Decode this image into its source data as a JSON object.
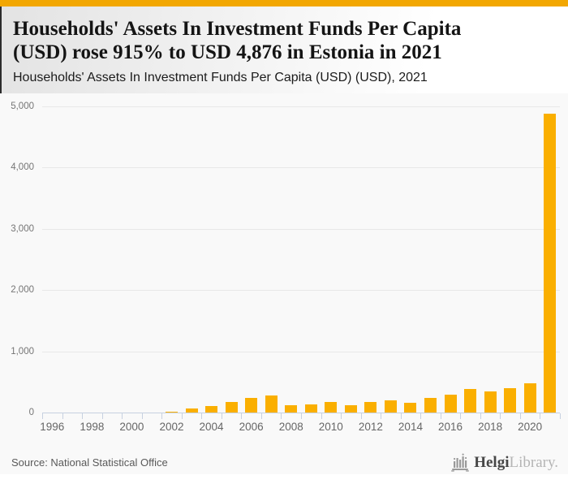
{
  "colors": {
    "accent_banner": "#F2A702",
    "bar": "#FAAF00",
    "axis": "#C7D1E0",
    "gridline": "#E8E8E8",
    "plot_background": "#F9F9F9"
  },
  "header": {
    "title_lines": [
      "Households' Assets In Investment Funds Per Capita",
      "(USD) rose 915% to USD 4,876 in Estonia in 2021"
    ],
    "subtitle": "Households' Assets In Investment Funds Per Capita (USD) (USD), 2021"
  },
  "chart_data": {
    "type": "bar",
    "title": "Households' Assets In Investment Funds Per Capita (USD) rose 915% to USD 4,876 in Estonia in 2021",
    "subtitle": "Households' Assets In Investment Funds Per Capita (USD) (USD), 2021",
    "unit": "USD",
    "categories": [
      1996,
      1997,
      1998,
      1999,
      2000,
      2001,
      2002,
      2003,
      2004,
      2005,
      2006,
      2007,
      2008,
      2009,
      2010,
      2011,
      2012,
      2013,
      2014,
      2015,
      2016,
      2017,
      2018,
      2019,
      2020,
      2021
    ],
    "values": [
      0,
      0,
      0,
      0,
      0,
      0,
      18,
      67,
      100,
      178,
      236,
      280,
      118,
      130,
      170,
      122,
      175,
      200,
      165,
      245,
      285,
      380,
      350,
      395,
      480,
      4876
    ],
    "ylim": [
      0,
      5000
    ],
    "y_ticks": [
      0,
      1000,
      2000,
      3000,
      4000,
      5000
    ],
    "y_tick_labels": [
      "0",
      "1,000",
      "2,000",
      "3,000",
      "4,000",
      "5,000"
    ],
    "x_tick_labels": [
      "1996",
      "1998",
      "2000",
      "2002",
      "2004",
      "2006",
      "2008",
      "2010",
      "2012",
      "2014",
      "2016",
      "2018",
      "2020"
    ],
    "grid": "horizontal",
    "legend": "none",
    "bar_color": "#FAAF00"
  },
  "footer": {
    "source": "Source: National Statistical Office",
    "logo_primary": "Helgi",
    "logo_secondary": "Library."
  }
}
